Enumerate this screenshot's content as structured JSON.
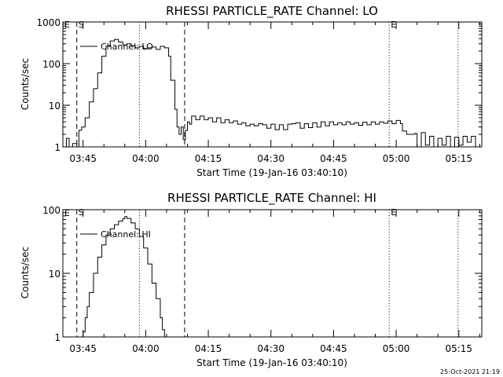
{
  "chart_data": [
    {
      "type": "line",
      "title": "RHESSI PARTICLE_RATE Channel: LO",
      "xlabel": "Start Time (19-Jan-16 03:40:10)",
      "ylabel": "Counts/sec",
      "y_scale": "log",
      "ylim": [
        1,
        1000
      ],
      "xlim": [
        "03:40:10",
        "05:20:30"
      ],
      "x_ticks": [
        "03:45",
        "04:00",
        "04:15",
        "04:30",
        "04:45",
        "05:00",
        "05:15"
      ],
      "y_ticks": [
        "1",
        "10",
        "100",
        "1000"
      ],
      "legend": "Channel: LO",
      "markers": [
        {
          "label": "S",
          "time": "03:43:30",
          "style": "dashed"
        },
        {
          "label": "",
          "time": "03:58:30",
          "style": "dotted"
        },
        {
          "label": "",
          "time": "04:09:20",
          "style": "dashed"
        },
        {
          "label": "E",
          "time": "04:58:20",
          "style": "dotted"
        },
        {
          "label": "",
          "time": "05:14:50",
          "style": "dotted"
        }
      ],
      "corner_label": "E",
      "series": [
        {
          "name": "Channel: LO",
          "points": [
            [
              "03:40:10",
              1
            ],
            [
              "03:41:00",
              1.6
            ],
            [
              "03:41:40",
              0.9
            ],
            [
              "03:42:30",
              1.2
            ],
            [
              "03:43:30",
              0.9
            ],
            [
              "03:44:00",
              2.5
            ],
            [
              "03:44:40",
              3
            ],
            [
              "03:45:30",
              5
            ],
            [
              "03:46:30",
              12
            ],
            [
              "03:47:30",
              25
            ],
            [
              "03:48:30",
              60
            ],
            [
              "03:49:30",
              150
            ],
            [
              "03:50:30",
              260
            ],
            [
              "03:51:30",
              350
            ],
            [
              "03:52:30",
              380
            ],
            [
              "03:53:30",
              330
            ],
            [
              "03:54:30",
              280
            ],
            [
              "03:55:30",
              300
            ],
            [
              "03:56:30",
              270
            ],
            [
              "03:57:30",
              240
            ],
            [
              "03:58:30",
              260
            ],
            [
              "03:59:30",
              230
            ],
            [
              "04:00:30",
              240
            ],
            [
              "04:01:30",
              250
            ],
            [
              "04:02:30",
              220
            ],
            [
              "04:03:30",
              260
            ],
            [
              "04:04:30",
              240
            ],
            [
              "04:05:30",
              150
            ],
            [
              "04:06:00",
              40
            ],
            [
              "04:07:00",
              8
            ],
            [
              "04:07:30",
              3
            ],
            [
              "04:08:00",
              2
            ],
            [
              "04:08:30",
              3
            ],
            [
              "04:09:00",
              1.5
            ],
            [
              "04:09:30",
              2.5
            ],
            [
              "04:10:00",
              4
            ],
            [
              "04:10:30",
              3.5
            ],
            [
              "04:11:00",
              5.5
            ],
            [
              "04:12:00",
              4.5
            ],
            [
              "04:13:00",
              5.5
            ],
            [
              "04:14:00",
              4.5
            ],
            [
              "04:15:00",
              5
            ],
            [
              "04:16:00",
              4
            ],
            [
              "04:17:00",
              5
            ],
            [
              "04:18:00",
              3.8
            ],
            [
              "04:19:00",
              4.5
            ],
            [
              "04:20:00",
              3.8
            ],
            [
              "04:21:00",
              4.2
            ],
            [
              "04:22:00",
              3.5
            ],
            [
              "04:23:00",
              3.8
            ],
            [
              "04:24:00",
              3.2
            ],
            [
              "04:25:00",
              3.5
            ],
            [
              "04:26:00",
              3.2
            ],
            [
              "04:27:00",
              3.6
            ],
            [
              "04:28:00",
              3.4
            ],
            [
              "04:29:00",
              2.8
            ],
            [
              "04:30:00",
              3.5
            ],
            [
              "04:31:00",
              2.6
            ],
            [
              "04:32:00",
              3.4
            ],
            [
              "04:33:00",
              2.6
            ],
            [
              "04:34:00",
              3.5
            ],
            [
              "04:35:00",
              3.6
            ],
            [
              "04:36:00",
              3.8
            ],
            [
              "04:37:00",
              2.8
            ],
            [
              "04:38:00",
              3.6
            ],
            [
              "04:39:00",
              2.9
            ],
            [
              "04:40:00",
              3.8
            ],
            [
              "04:41:00",
              3
            ],
            [
              "04:42:00",
              4
            ],
            [
              "04:43:00",
              3.2
            ],
            [
              "04:44:00",
              4
            ],
            [
              "04:45:00",
              3.4
            ],
            [
              "04:46:00",
              3.8
            ],
            [
              "04:47:00",
              3.4
            ],
            [
              "04:48:00",
              4
            ],
            [
              "04:49:00",
              3.5
            ],
            [
              "04:50:00",
              3.8
            ],
            [
              "04:51:00",
              3.3
            ],
            [
              "04:52:00",
              3.9
            ],
            [
              "04:53:00",
              3.4
            ],
            [
              "04:54:00",
              4
            ],
            [
              "04:55:00",
              3.5
            ],
            [
              "04:56:00",
              4
            ],
            [
              "04:57:00",
              3.7
            ],
            [
              "04:58:00",
              4.2
            ],
            [
              "04:59:00",
              3.6
            ],
            [
              "05:00:00",
              4.3
            ],
            [
              "05:01:00",
              3.6
            ],
            [
              "05:01:30",
              2.4
            ],
            [
              "05:02:30",
              2
            ],
            [
              "05:03:30",
              2
            ],
            [
              "05:04:30",
              2.1
            ],
            [
              "05:05:00",
              0.9
            ],
            [
              "05:06:00",
              2.2
            ],
            [
              "05:07:00",
              1.1
            ],
            [
              "05:08:00",
              1.8
            ],
            [
              "05:09:00",
              0.9
            ],
            [
              "05:10:00",
              1.6
            ],
            [
              "05:11:00",
              1.1
            ],
            [
              "05:12:00",
              1.8
            ],
            [
              "05:13:00",
              1
            ],
            [
              "05:14:00",
              1.7
            ],
            [
              "05:15:00",
              1.1
            ],
            [
              "05:16:00",
              1.8
            ],
            [
              "05:17:00",
              1.3
            ],
            [
              "05:18:00",
              1.8
            ],
            [
              "05:19:00",
              1
            ],
            [
              "05:20:30",
              1.8
            ]
          ]
        }
      ]
    },
    {
      "type": "line",
      "title": "RHESSI PARTICLE_RATE Channel: HI",
      "xlabel": "Start Time (19-Jan-16 03:40:10)",
      "ylabel": "Counts/sec",
      "y_scale": "log",
      "ylim": [
        1,
        100
      ],
      "xlim": [
        "03:40:10",
        "05:20:30"
      ],
      "x_ticks": [
        "03:45",
        "04:00",
        "04:15",
        "04:30",
        "04:45",
        "05:00",
        "05:15"
      ],
      "y_ticks": [
        "1",
        "10",
        "100"
      ],
      "legend": "Channel: HI",
      "markers": [
        {
          "label": "S",
          "time": "03:43:30",
          "style": "dashed"
        },
        {
          "label": "",
          "time": "03:58:30",
          "style": "dotted"
        },
        {
          "label": "",
          "time": "04:09:20",
          "style": "dashed"
        },
        {
          "label": "E",
          "time": "04:58:20",
          "style": "dotted"
        },
        {
          "label": "",
          "time": "05:14:50",
          "style": "dotted"
        }
      ],
      "corner_label": "E",
      "series": [
        {
          "name": "Channel: HI",
          "points": [
            [
              "03:44:40",
              0.9
            ],
            [
              "03:45:00",
              1.2
            ],
            [
              "03:45:30",
              2
            ],
            [
              "03:46:00",
              3
            ],
            [
              "03:46:30",
              5
            ],
            [
              "03:47:30",
              10
            ],
            [
              "03:48:30",
              18
            ],
            [
              "03:49:30",
              28
            ],
            [
              "03:50:30",
              40
            ],
            [
              "03:51:30",
              50
            ],
            [
              "03:52:30",
              58
            ],
            [
              "03:53:30",
              66
            ],
            [
              "03:54:30",
              72
            ],
            [
              "03:55:00",
              78
            ],
            [
              "03:55:30",
              73
            ],
            [
              "03:56:30",
              62
            ],
            [
              "03:57:30",
              50
            ],
            [
              "03:58:30",
              38
            ],
            [
              "03:59:30",
              25
            ],
            [
              "04:00:30",
              14
            ],
            [
              "04:01:30",
              7
            ],
            [
              "04:02:30",
              4
            ],
            [
              "04:03:30",
              2
            ],
            [
              "04:04:00",
              1.3
            ],
            [
              "04:04:30",
              0.9
            ]
          ]
        }
      ]
    }
  ],
  "footer": {
    "datestamp": "25-Oct-2021 21:19"
  }
}
